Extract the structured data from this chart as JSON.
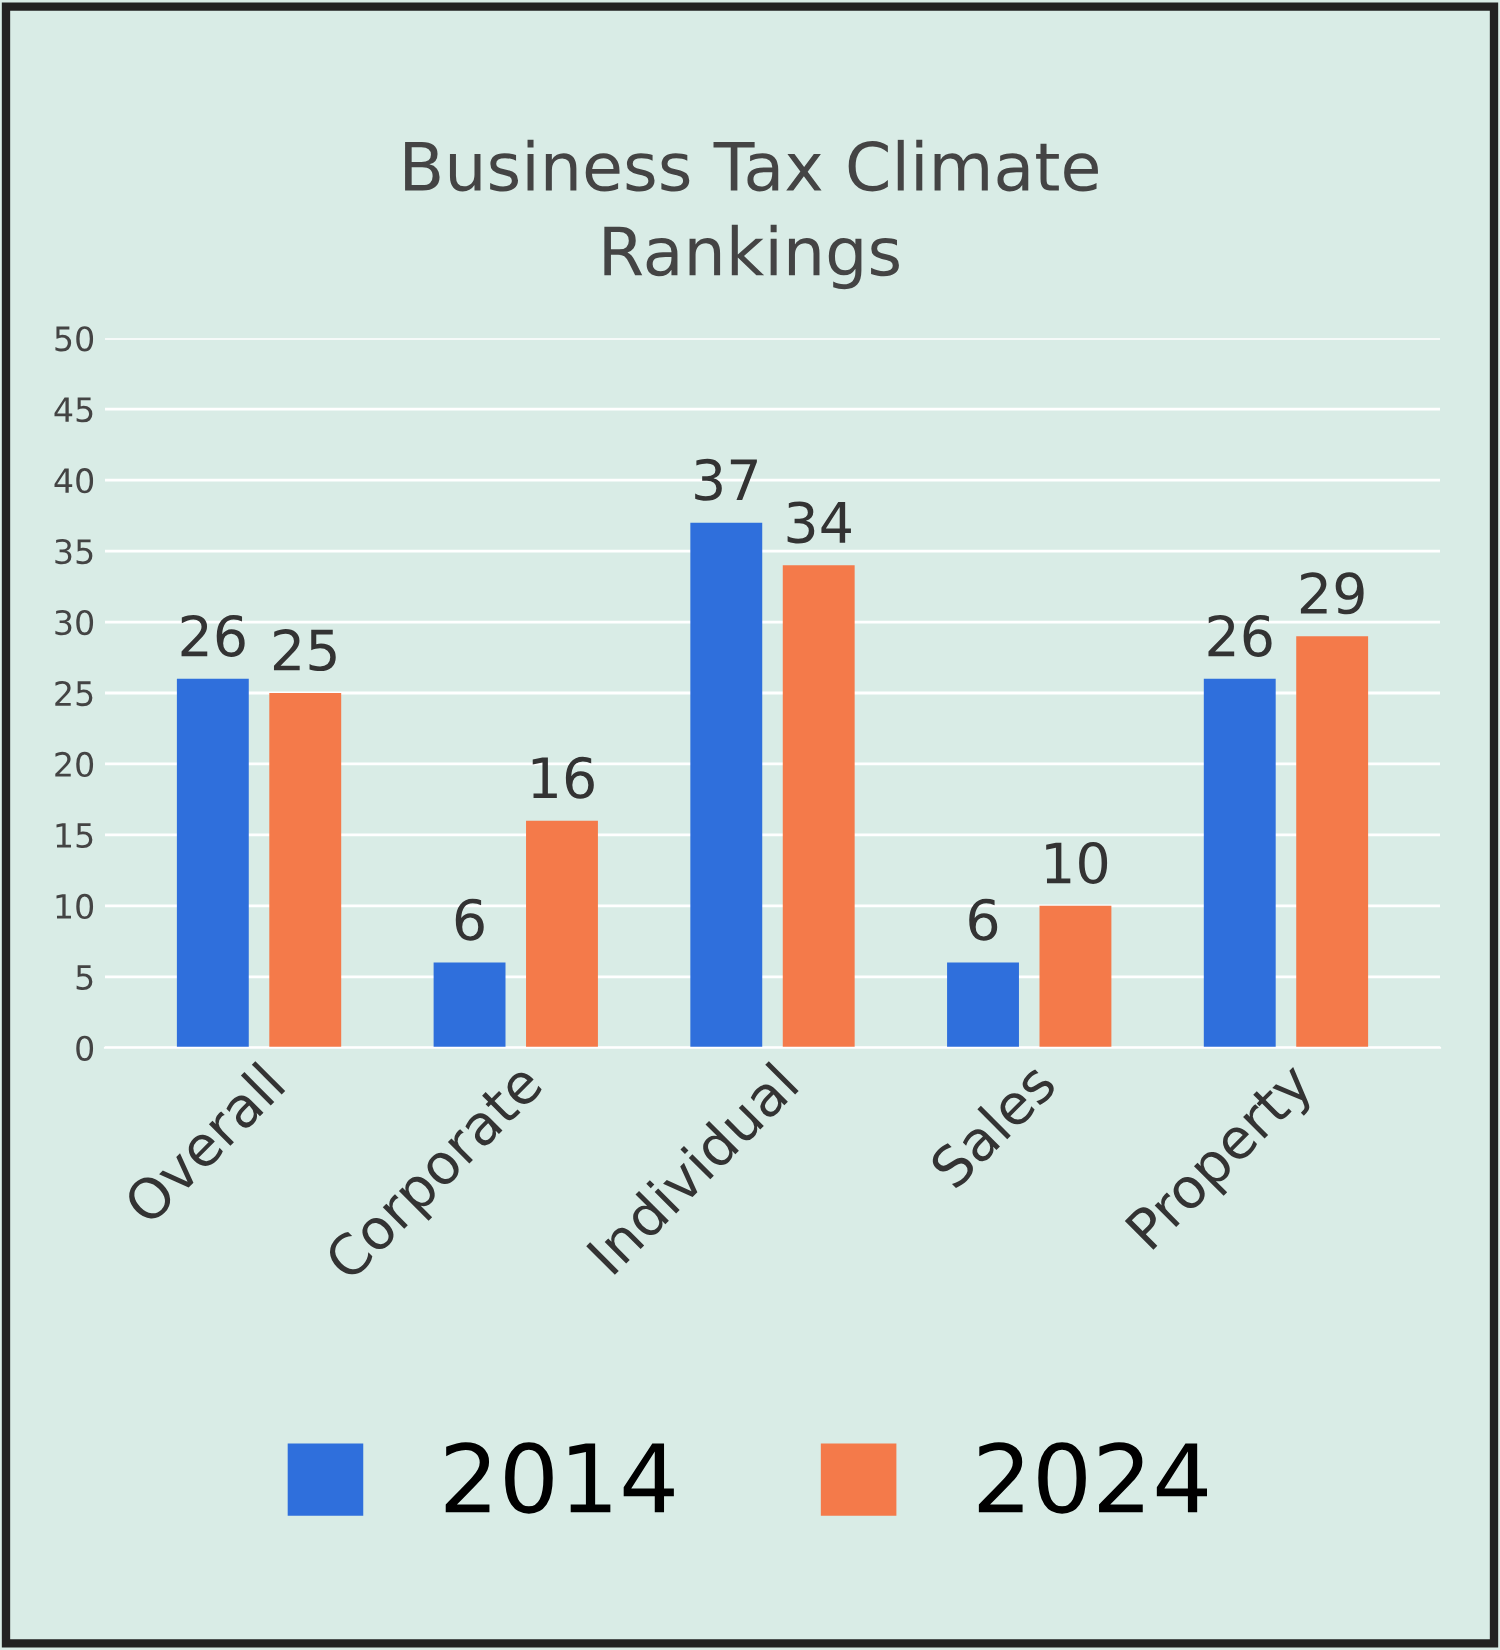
{
  "chart_data": {
    "type": "bar",
    "title": "Business Tax Climate\nRankings",
    "categories": [
      "Overall",
      "Corporate",
      "Individual",
      "Sales",
      "Property"
    ],
    "series": [
      {
        "name": "2014",
        "color": "#2f6fdc",
        "values": [
          26,
          6,
          37,
          6,
          26
        ]
      },
      {
        "name": "2024",
        "color": "#f47a4a",
        "values": [
          25,
          16,
          34,
          10,
          29
        ]
      }
    ],
    "ylim": [
      0,
      50
    ],
    "yticks": [
      0,
      5,
      10,
      15,
      20,
      25,
      30,
      35,
      40,
      45,
      50
    ],
    "grid": "y",
    "legend": "bottom",
    "data_labels": true
  }
}
